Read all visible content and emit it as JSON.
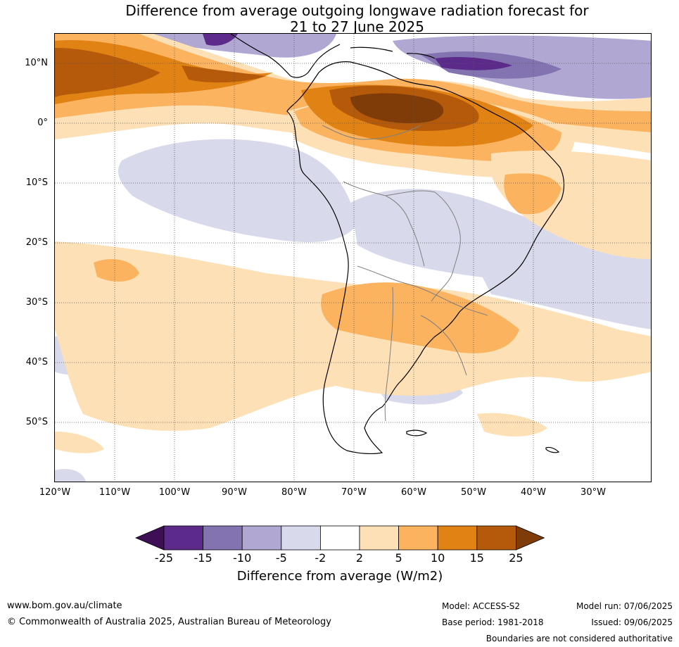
{
  "title": {
    "line1": "Difference from average outgoing longwave radiation forecast for",
    "line2": "21 to 27 June 2025"
  },
  "map": {
    "lat_labels": [
      "10°N",
      "0°",
      "10°S",
      "20°S",
      "30°S",
      "40°S",
      "50°S"
    ],
    "lon_labels": [
      "120°W",
      "110°W",
      "100°W",
      "90°W",
      "80°W",
      "70°W",
      "60°W",
      "50°W",
      "40°W",
      "30°W"
    ],
    "extent": {
      "lon_min": -120,
      "lon_max": -20,
      "lat_min": -60,
      "lat_max": 15
    }
  },
  "colorbar": {
    "ticks": [
      "-25",
      "-15",
      "-10",
      "-5",
      "-2",
      "2",
      "5",
      "10",
      "15",
      "25"
    ],
    "colors": [
      "#3f0f55",
      "#5b2a8a",
      "#8373b0",
      "#b0a8d2",
      "#d9d9ec",
      "#ffffff",
      "#fde0b6",
      "#fbb35f",
      "#e08214",
      "#b45a0a",
      "#7f3b08"
    ],
    "label": "Difference from average (W/m2)"
  },
  "footer": {
    "website": "www.bom.gov.au/climate",
    "copyright": "© Commonwealth of Australia 2025, Australian Bureau of Meteorology",
    "model": "Model: ACCESS-S2",
    "base_period": "Base period: 1981-2018",
    "model_run": "Model run: 07/06/2025",
    "issued": "Issued: 09/06/2025",
    "disclaimer": "Boundaries are not considered authoritative"
  }
}
